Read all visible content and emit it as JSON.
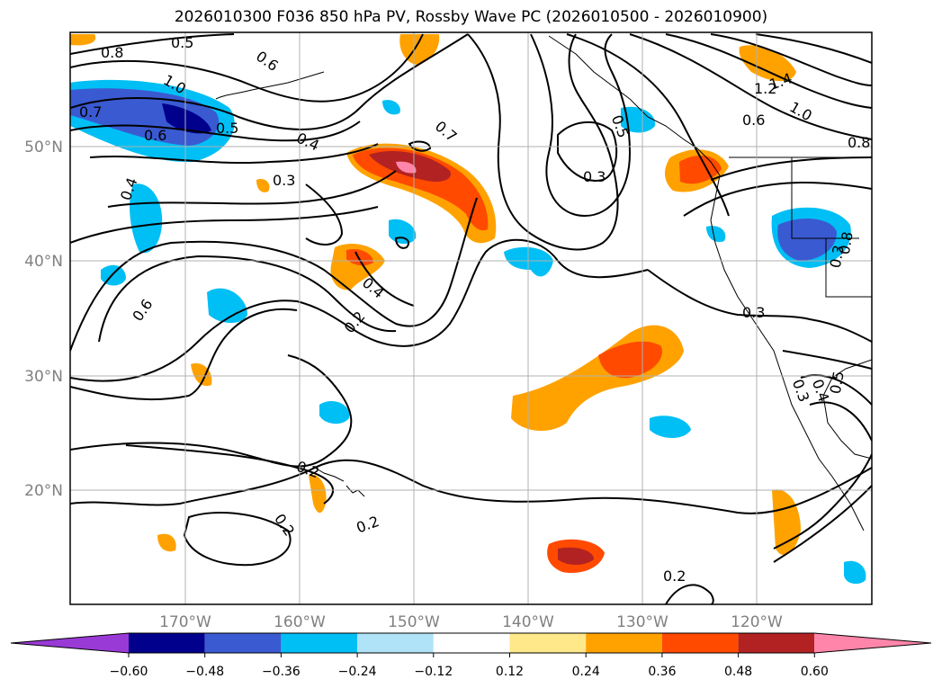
{
  "title": "2026010300 F036 850 hPa PV, Rossby Wave PC (2026010500 - 2026010900)",
  "lat_labels": [
    "50°N",
    "40°N",
    "30°N",
    "20°N"
  ],
  "lon_labels": [
    "170°W",
    "160°W",
    "150°W",
    "140°W",
    "130°W",
    "120°W"
  ],
  "contour_labels": [
    "0.8",
    "0.5",
    "0.6",
    "1.0",
    "0.7",
    "0.6",
    "0.5",
    "0.4",
    "0.3",
    "0.4",
    "0.6",
    "0.4",
    "0.2",
    "0.7",
    "0.3",
    "0.5",
    "1.4",
    "1.2",
    "1.0",
    "0.6",
    "0.8",
    "0.3",
    "0.8",
    "0.3",
    "0.3",
    "0.4",
    "0.5",
    "0.2",
    "0.2",
    "0.2",
    "0.2"
  ],
  "colorbar": {
    "ticks": [
      "−0.60",
      "−0.48",
      "−0.36",
      "−0.24",
      "−0.12",
      "0.12",
      "0.24",
      "0.36",
      "0.48",
      "0.60"
    ],
    "colors": [
      "#9a3ad6",
      "#00008c",
      "#3a5ad2",
      "#00bff5",
      "#b0e2f8",
      "#ffffff",
      "#ffe88a",
      "#ffa200",
      "#ff4a00",
      "#b22222",
      "#ff86aa"
    ]
  }
}
